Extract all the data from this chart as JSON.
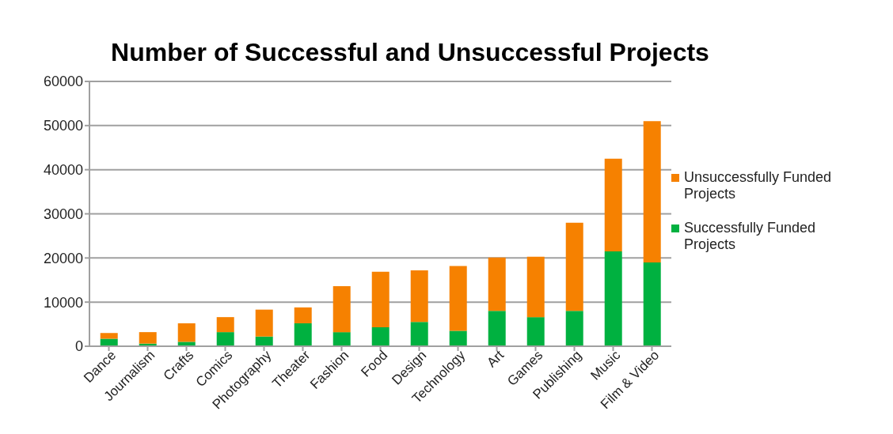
{
  "chart_data": {
    "type": "bar",
    "title": "Number of Successful and Unsuccessful Projects",
    "categories": [
      "Dance",
      "Journalism",
      "Crafts",
      "Comics",
      "Photography",
      "Theater",
      "Fashion",
      "Food",
      "Design",
      "Technology",
      "Art",
      "Games",
      "Publishing",
      "Music",
      "Film & Video"
    ],
    "series": [
      {
        "name": "Successfully Funded Projects",
        "color": "#00b140",
        "values": [
          1700,
          600,
          1000,
          3200,
          2200,
          5200,
          3200,
          4300,
          5500,
          3500,
          8000,
          6600,
          8000,
          21500,
          19000
        ]
      },
      {
        "name": "Unsuccessfully Funded Projects",
        "color": "#f68100",
        "values": [
          1300,
          2600,
          4200,
          3400,
          6100,
          3600,
          10400,
          12600,
          11700,
          14700,
          12100,
          13700,
          20000,
          21000,
          32000
        ]
      }
    ],
    "stacked": true,
    "ylim": [
      0,
      60000
    ],
    "yticks": [
      0,
      10000,
      20000,
      30000,
      40000,
      50000,
      60000
    ],
    "grid": "y",
    "legend": "right"
  }
}
